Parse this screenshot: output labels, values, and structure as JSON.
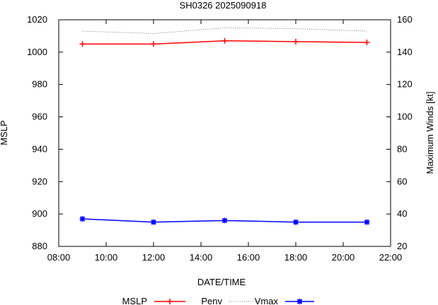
{
  "chart_data": {
    "type": "line",
    "title": "SH0326 2025090918",
    "xlabel": "DATE/TIME",
    "ylabel_left": "MSLP",
    "ylabel_right": "Maximum Winds [kt]",
    "x_unit": "hours",
    "xlim": [
      8,
      22
    ],
    "x_ticks": [
      {
        "value": 8,
        "label": "08:00"
      },
      {
        "value": 10,
        "label": "10:00"
      },
      {
        "value": 12,
        "label": "12:00"
      },
      {
        "value": 14,
        "label": "14:00"
      },
      {
        "value": 16,
        "label": "16:00"
      },
      {
        "value": 18,
        "label": "18:00"
      },
      {
        "value": 20,
        "label": "20:00"
      },
      {
        "value": 22,
        "label": "22:00"
      }
    ],
    "ylim_left": [
      880,
      1020
    ],
    "y_ticks_left": [
      880,
      900,
      920,
      940,
      960,
      980,
      1000,
      1020
    ],
    "ylim_right": [
      20,
      160
    ],
    "y_ticks_right": [
      20,
      40,
      60,
      80,
      100,
      120,
      140,
      160
    ],
    "x": [
      9,
      12,
      15,
      18,
      21
    ],
    "series": [
      {
        "name": "MSLP",
        "axis": "left",
        "color": "#ff0000",
        "marker": "plus",
        "style": "solid",
        "values": [
          1005,
          1005,
          1007,
          1006.5,
          1006
        ]
      },
      {
        "name": "Penv",
        "axis": "left",
        "color": "#555555",
        "marker": "none",
        "style": "dotted",
        "values": [
          1013,
          1011.5,
          1015,
          1014.5,
          1013
        ]
      },
      {
        "name": "Vmax",
        "axis": "right",
        "color": "#0000ff",
        "marker": "cross",
        "style": "solid",
        "values": [
          37,
          35,
          36,
          35,
          35
        ]
      }
    ],
    "legend_position": "bottom"
  }
}
